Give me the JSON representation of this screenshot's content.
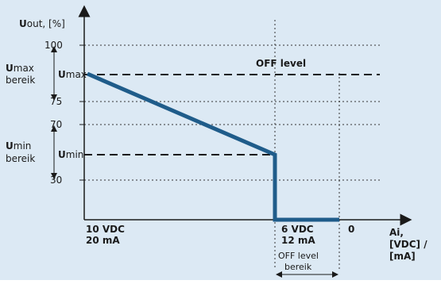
{
  "diagram": {
    "y_axis_title_bold": "U",
    "y_axis_title_rest": "out, [%]",
    "y_ticks": [
      "100",
      "75",
      "70",
      "30"
    ],
    "umax_range_bold": "U",
    "umax_range_rest": "max",
    "umax_range_line2": "bereik",
    "umin_range_bold": "U",
    "umin_range_rest": "min",
    "umin_range_line2": "bereik",
    "umax_level_bold": "U",
    "umax_level_rest": "max",
    "umin_level_bold": "U",
    "umin_level_rest": "min",
    "off_level": "OFF level",
    "x_left_line1": "10 VDC",
    "x_left_line2": "20 mA",
    "x_mid_line1": "6 VDC",
    "x_mid_line2": "12 mA",
    "x_right": "0",
    "x_axis_title_line1": "Ai,",
    "x_axis_title_line2": "[VDC] /",
    "x_axis_title_line3": "[mA]",
    "off_range_line1": "OFF level",
    "off_range_line2": "bereik",
    "colors": {
      "curve": "#1f5c8a",
      "background": "#dce9f4",
      "axis": "#1a1a1a"
    }
  }
}
